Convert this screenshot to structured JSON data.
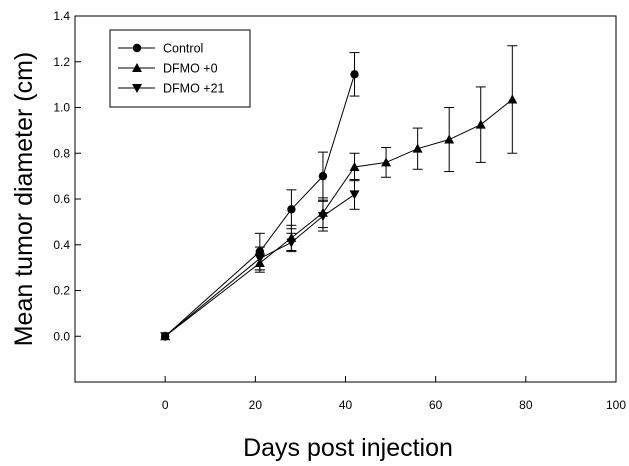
{
  "chart_data": {
    "type": "line",
    "xlabel": "Days post injection",
    "ylabel": "Mean tumor diameter  (cm)",
    "xlim": [
      -20,
      100
    ],
    "ylim": [
      -0.2,
      1.4
    ],
    "xticks": [
      0,
      20,
      40,
      60,
      80,
      100
    ],
    "yticks": [
      0.0,
      0.2,
      0.4,
      0.6,
      0.8,
      1.0,
      1.2,
      1.4
    ],
    "xtick_labels": [
      "0",
      "20",
      "40",
      "60",
      "80",
      "100"
    ],
    "ytick_labels": [
      "0.0",
      "0.2",
      "0.4",
      "0.6",
      "0.8",
      "1.0",
      "1.2",
      "1.4"
    ],
    "grid": false,
    "legend_position": "top-left",
    "series": [
      {
        "name": "Control",
        "marker": "circle",
        "x": [
          0,
          21,
          28,
          35,
          42
        ],
        "y": [
          0.0,
          0.37,
          0.555,
          0.7,
          1.145
        ],
        "err": [
          0.0,
          0.08,
          0.085,
          0.105,
          0.095
        ]
      },
      {
        "name": "DFMO +0",
        "marker": "triangle-up",
        "x": [
          0,
          21,
          28,
          35,
          42,
          49,
          56,
          63,
          70,
          77
        ],
        "y": [
          0.0,
          0.32,
          0.43,
          0.54,
          0.74,
          0.76,
          0.82,
          0.86,
          0.925,
          1.035
        ],
        "err": [
          0.0,
          0.04,
          0.055,
          0.065,
          0.06,
          0.065,
          0.09,
          0.14,
          0.165,
          0.235
        ]
      },
      {
        "name": "DFMO +21",
        "marker": "triangle-down",
        "x": [
          0,
          21,
          28,
          35,
          42
        ],
        "y": [
          0.0,
          0.34,
          0.41,
          0.525,
          0.62
        ],
        "err": [
          0.0,
          0.05,
          0.04,
          0.065,
          0.065
        ]
      }
    ]
  }
}
